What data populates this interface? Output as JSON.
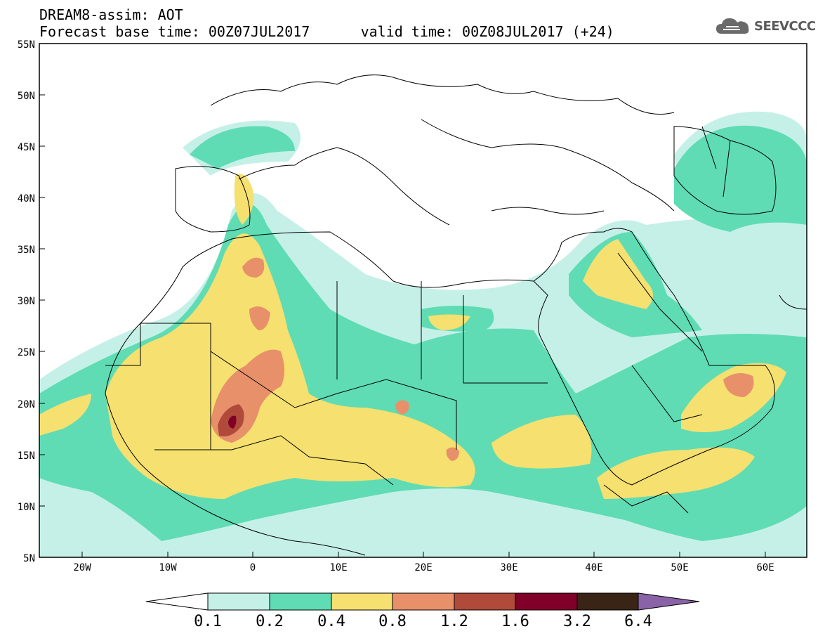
{
  "header": {
    "model_field": "DREAM8-assim: AOT",
    "base_time": "Forecast base time: 00Z07JUL2017",
    "valid_time": "valid time: 00Z08JUL2017 (+24)"
  },
  "logo": {
    "text": "SEEVCCC",
    "icon": "cloud-icon"
  },
  "axes": {
    "lat_labels": [
      "55N",
      "50N",
      "45N",
      "40N",
      "35N",
      "30N",
      "25N",
      "20N",
      "15N",
      "10N",
      "5N"
    ],
    "lon_labels": [
      "20W",
      "10W",
      "0",
      "10E",
      "20E",
      "30E",
      "40E",
      "50E",
      "60E"
    ]
  },
  "colorbar": {
    "labels": [
      "0.1",
      "0.2",
      "0.4",
      "0.8",
      "1.2",
      "1.6",
      "3.2",
      "6.4"
    ],
    "colors": [
      "#ffffff",
      "#c5f0e8",
      "#5fdcb4",
      "#f5e070",
      "#e8906a",
      "#b04a3a",
      "#80002a",
      "#3a2416",
      "#8a62a8"
    ]
  },
  "colors": {
    "land_outline": "#000000",
    "ocean": "#ffffff",
    "aot_0_1_0_2": "#c5f0e8",
    "aot_0_2_0_4": "#5fdcb4",
    "aot_0_4_0_8": "#f5e070",
    "aot_0_8_1_2": "#e8906a",
    "aot_1_2_1_6": "#b04a3a",
    "aot_1_6_3_2": "#80002a"
  }
}
